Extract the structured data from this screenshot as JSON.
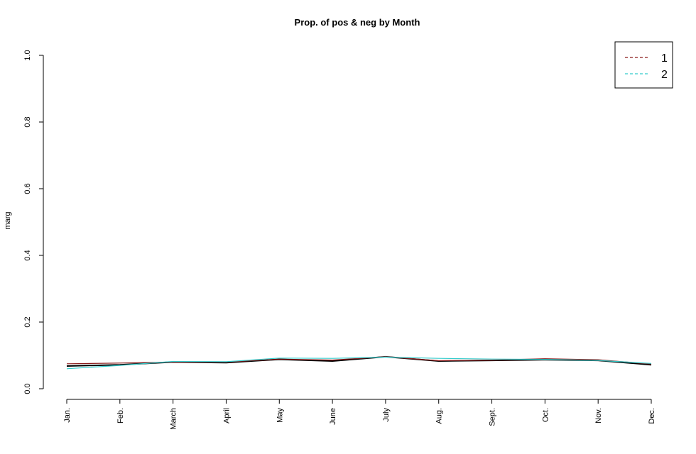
{
  "chart_data": {
    "type": "line",
    "title": "Prop. of pos & neg by Month",
    "xlabel": "",
    "ylabel": "marg",
    "ylim": [
      0,
      1
    ],
    "yticks": [
      "0.0",
      "0.2",
      "0.4",
      "0.6",
      "0.8",
      "1.0"
    ],
    "categories": [
      "Jan.",
      "Feb.",
      "March",
      "April",
      "May",
      "June",
      "July",
      "Aug.",
      "Sept.",
      "Oct.",
      "Nov.",
      "Dec."
    ],
    "series": [
      {
        "name": "",
        "color": "#000000",
        "dash": "solid",
        "values": [
          0.068,
          0.072,
          0.08,
          0.078,
          0.088,
          0.083,
          0.096,
          0.083,
          0.085,
          0.087,
          0.085,
          0.072
        ]
      },
      {
        "name": "1",
        "color": "#8b1a1a",
        "dash": "dashed",
        "values": [
          0.075,
          0.077,
          0.08,
          0.08,
          0.089,
          0.086,
          0.096,
          0.084,
          0.086,
          0.09,
          0.087,
          0.074
        ]
      },
      {
        "name": "2",
        "color": "#33cccc",
        "dash": "dashed",
        "values": [
          0.06,
          0.07,
          0.082,
          0.081,
          0.092,
          0.091,
          0.095,
          0.091,
          0.089,
          0.088,
          0.085,
          0.076
        ]
      }
    ],
    "grid": false,
    "legend": {
      "position": "top-right",
      "entries": [
        "1",
        "2"
      ]
    }
  }
}
